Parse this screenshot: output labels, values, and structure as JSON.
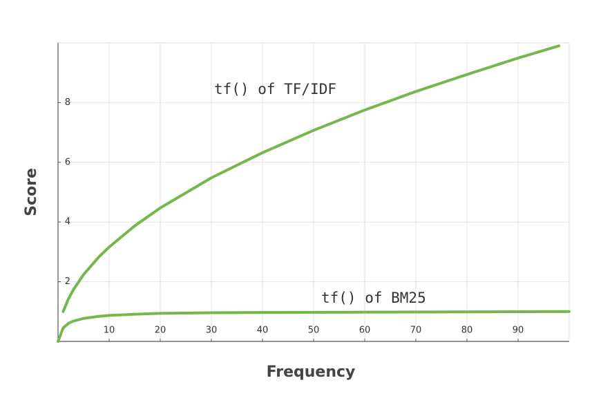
{
  "chart_data": {
    "type": "line",
    "xlabel": "Frequency",
    "ylabel": "Score",
    "xlim": [
      0,
      100
    ],
    "ylim": [
      0,
      10
    ],
    "xticks": [
      10,
      20,
      30,
      40,
      50,
      60,
      70,
      80,
      90
    ],
    "yticks": [
      2,
      4,
      6,
      8
    ],
    "grid": true,
    "series": [
      {
        "name": "tf() of TF/IDF",
        "color": "#72b84a",
        "x": [
          1,
          2,
          3,
          5,
          8,
          10,
          15,
          20,
          30,
          40,
          50,
          60,
          70,
          80,
          90,
          98
        ],
        "values": [
          1,
          1.41,
          1.73,
          2.24,
          2.83,
          3.16,
          3.87,
          4.47,
          5.48,
          6.32,
          7.07,
          7.75,
          8.37,
          8.94,
          9.49,
          9.9
        ]
      },
      {
        "name": "tf() of BM25",
        "color": "#72b84a",
        "x": [
          0,
          1,
          2,
          3,
          5,
          8,
          10,
          15,
          20,
          30,
          40,
          60,
          80,
          100
        ],
        "values": [
          0,
          0.45,
          0.6,
          0.68,
          0.77,
          0.84,
          0.87,
          0.91,
          0.94,
          0.96,
          0.97,
          0.98,
          0.99,
          1.0
        ]
      }
    ]
  }
}
